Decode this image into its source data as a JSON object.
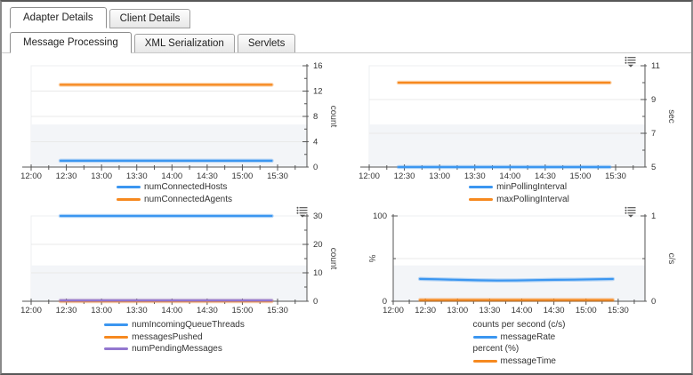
{
  "tabs": {
    "row1": [
      {
        "label": "Adapter Details",
        "active": true
      },
      {
        "label": "Client Details",
        "active": false
      }
    ],
    "row2": [
      {
        "label": "Message Processing",
        "active": true
      },
      {
        "label": "XML Serialization",
        "active": false
      },
      {
        "label": "Servlets",
        "active": false
      }
    ]
  },
  "colors": {
    "blue": "#3b96f0",
    "orange": "#f6891f",
    "purple": "#9377cf",
    "axis": "#555555",
    "grid": "#e9e9e9",
    "band": "#f3f5f8",
    "plot_border": "#eceff2",
    "icon": "#555555"
  },
  "time_axis": {
    "labels": [
      "12:00",
      "12:30",
      "13:00",
      "13:30",
      "14:00",
      "14:30",
      "15:00",
      "15:30"
    ],
    "minutes": [
      0,
      30,
      60,
      90,
      120,
      150,
      180,
      210
    ],
    "range": [
      0,
      235
    ],
    "minor_step": 15
  },
  "chart_data": [
    {
      "type": "line",
      "x_start": 25,
      "x_end": 205,
      "axes": [
        {
          "side": "right",
          "label": "count",
          "lim": [
            0,
            16
          ],
          "majors": [
            0,
            4,
            8,
            12,
            16
          ],
          "minors": [
            2,
            6,
            10,
            14
          ]
        }
      ],
      "series": [
        {
          "name": "numConnectedHosts",
          "color": "blue",
          "axis": 0,
          "values": [
            1
          ]
        },
        {
          "name": "numConnectedAgents",
          "color": "orange",
          "axis": 0,
          "values": [
            13
          ]
        }
      ],
      "menu_icon": false
    },
    {
      "type": "line",
      "x_start": 25,
      "x_end": 205,
      "axes": [
        {
          "side": "right",
          "label": "sec",
          "lim": [
            5,
            11
          ],
          "majors": [
            5,
            7,
            9,
            11
          ],
          "minors": [
            6,
            8,
            10
          ]
        }
      ],
      "series": [
        {
          "name": "minPollingInterval",
          "color": "blue",
          "axis": 0,
          "values": [
            5
          ]
        },
        {
          "name": "maxPollingInterval",
          "color": "orange",
          "axis": 0,
          "values": [
            10
          ]
        }
      ],
      "menu_icon": true
    },
    {
      "type": "line",
      "x_start": 25,
      "x_end": 205,
      "axes": [
        {
          "side": "right",
          "label": "count",
          "lim": [
            0,
            30
          ],
          "majors": [
            0,
            10,
            20,
            30
          ],
          "minors": [
            5,
            15,
            25
          ]
        }
      ],
      "series": [
        {
          "name": "numIncomingQueueThreads",
          "color": "blue",
          "axis": 0,
          "values": [
            30
          ]
        },
        {
          "name": "messagesPushed",
          "color": "orange",
          "axis": 0,
          "values": [
            0
          ]
        },
        {
          "name": "numPendingMessages",
          "color": "purple",
          "axis": 0,
          "values": [
            0.3
          ]
        }
      ],
      "menu_icon": true
    },
    {
      "type": "line",
      "x_start": 25,
      "x_end": 205,
      "layout": {
        "left": 52
      },
      "axes": [
        {
          "side": "left",
          "label": "%",
          "lim": [
            0,
            100
          ],
          "majors": [
            0,
            100
          ],
          "minors": [
            50
          ]
        },
        {
          "side": "right",
          "label": "c/s",
          "lim": [
            0,
            1
          ],
          "majors": [
            0,
            1
          ],
          "minors": [
            0.5
          ]
        }
      ],
      "series": [
        {
          "name": "messageRate",
          "color": "blue",
          "axis": 1,
          "values": [
            0.262,
            0.257,
            0.251,
            0.246,
            0.243,
            0.244,
            0.248,
            0.251,
            0.253,
            0.257,
            0.261
          ]
        },
        {
          "name": "messageTime",
          "color": "orange",
          "axis": 0,
          "values": [
            1.5
          ]
        }
      ],
      "legend_groups": [
        {
          "label": "counts per second (c/s)"
        },
        {
          "label": "percent (%)"
        }
      ],
      "menu_icon": true
    }
  ]
}
